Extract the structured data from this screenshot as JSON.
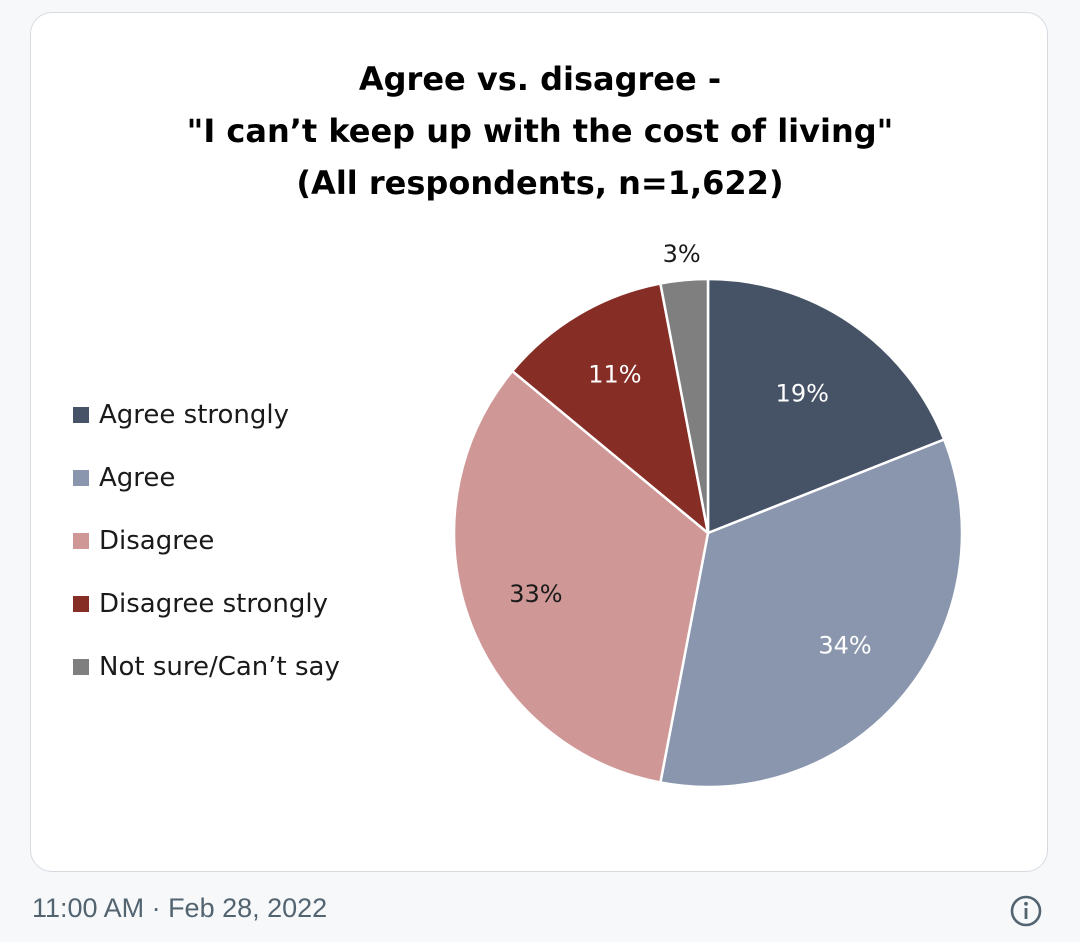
{
  "tweet": {
    "timestamp": "11:00 AM · Feb 28, 2022",
    "info_icon": "info-circle-icon"
  },
  "chart_data": {
    "type": "pie",
    "title_lines": [
      "Agree vs. disagree -",
      "\"I can’t keep up with the cost of living\"",
      "(All respondents,  n=1,622)"
    ],
    "legend_placement": "left",
    "slices": [
      {
        "name": "Agree strongly",
        "value": 19,
        "label": "19%",
        "color": "#465366",
        "label_color": "#ffffff"
      },
      {
        "name": "Agree",
        "value": 34,
        "label": "34%",
        "color": "#8996ae",
        "label_color": "#ffffff"
      },
      {
        "name": "Disagree",
        "value": 33,
        "label": "33%",
        "color": "#cf9896",
        "label_color": "#1a1a1a"
      },
      {
        "name": "Disagree strongly",
        "value": 11,
        "label": "11%",
        "color": "#862d26",
        "label_color": "#ffffff"
      },
      {
        "name": "Not sure/Can’t say",
        "value": 3,
        "label": "3%",
        "color": "#7f7f7f",
        "label_color": "#1a1a1a"
      }
    ]
  }
}
